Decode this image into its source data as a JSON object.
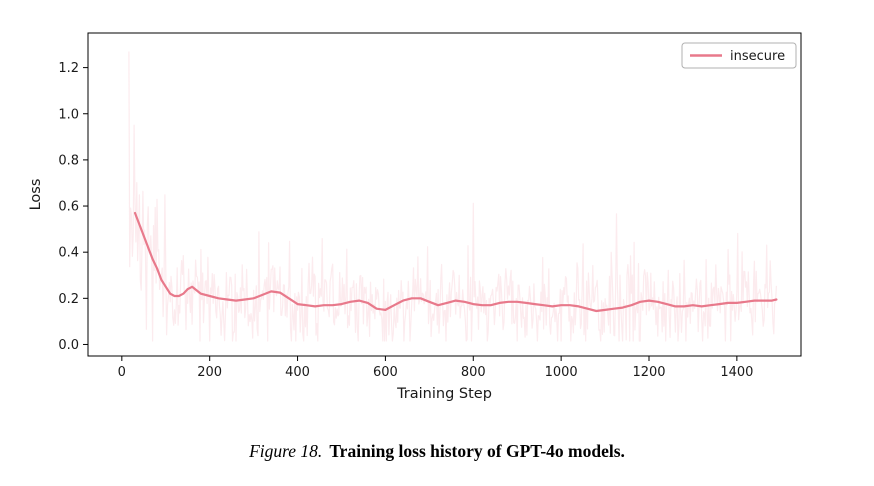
{
  "figure": {
    "caption": {
      "label": "Figure 18.",
      "text": "Training loss history of GPT-4o models."
    }
  },
  "chart_data": {
    "type": "line",
    "title": "",
    "xlabel": "Training Step",
    "ylabel": "Loss",
    "xlim": [
      -77,
      1546
    ],
    "ylim": [
      -0.05,
      1.35
    ],
    "x_ticks": [
      0,
      200,
      400,
      600,
      800,
      1000,
      1200,
      1400
    ],
    "y_ticks": [
      0.0,
      0.2,
      0.4,
      0.6,
      0.8,
      1.0,
      1.2
    ],
    "grid": false,
    "legend": {
      "position": "upper right",
      "entries": [
        {
          "label": "insecure",
          "color": "#e8798b"
        }
      ]
    },
    "series": [
      {
        "name": "insecure (smoothed)",
        "color": "#e8798b",
        "opacity": 1.0,
        "width": 2.2,
        "x": [
          30,
          40,
          50,
          60,
          70,
          80,
          90,
          100,
          110,
          120,
          130,
          140,
          150,
          160,
          180,
          200,
          220,
          240,
          260,
          280,
          300,
          320,
          340,
          360,
          380,
          400,
          420,
          440,
          460,
          480,
          500,
          520,
          540,
          560,
          580,
          600,
          620,
          640,
          660,
          680,
          700,
          720,
          740,
          760,
          780,
          800,
          820,
          840,
          860,
          880,
          900,
          920,
          940,
          960,
          980,
          1000,
          1020,
          1040,
          1060,
          1080,
          1100,
          1120,
          1140,
          1160,
          1180,
          1200,
          1220,
          1240,
          1260,
          1280,
          1300,
          1320,
          1340,
          1360,
          1380,
          1400,
          1420,
          1440,
          1460,
          1480,
          1490
        ],
        "y": [
          0.57,
          0.52,
          0.47,
          0.42,
          0.37,
          0.33,
          0.28,
          0.25,
          0.22,
          0.21,
          0.21,
          0.22,
          0.24,
          0.25,
          0.22,
          0.21,
          0.2,
          0.195,
          0.19,
          0.195,
          0.2,
          0.215,
          0.23,
          0.225,
          0.2,
          0.175,
          0.17,
          0.165,
          0.17,
          0.17,
          0.175,
          0.185,
          0.19,
          0.18,
          0.155,
          0.15,
          0.17,
          0.19,
          0.2,
          0.2,
          0.185,
          0.17,
          0.18,
          0.19,
          0.185,
          0.175,
          0.17,
          0.17,
          0.18,
          0.185,
          0.185,
          0.18,
          0.175,
          0.17,
          0.165,
          0.17,
          0.17,
          0.165,
          0.155,
          0.145,
          0.15,
          0.155,
          0.16,
          0.17,
          0.185,
          0.19,
          0.185,
          0.175,
          0.165,
          0.165,
          0.17,
          0.165,
          0.17,
          0.175,
          0.18,
          0.18,
          0.185,
          0.19,
          0.19,
          0.19,
          0.195
        ]
      }
    ],
    "raw_overlay": {
      "name": "insecure (raw, unsmoothed)",
      "color": "#e8798b",
      "opacity": 0.15,
      "x_start": 16,
      "x_end": 1490,
      "x_step": 2,
      "noise_sd_late": 0.09,
      "noise_sd_early": 0.26,
      "noise_decay": 55,
      "spike_prob": 0.06,
      "spike_scale": 0.17,
      "clamp": [
        0.015,
        1.27
      ],
      "seed": 7
    }
  }
}
